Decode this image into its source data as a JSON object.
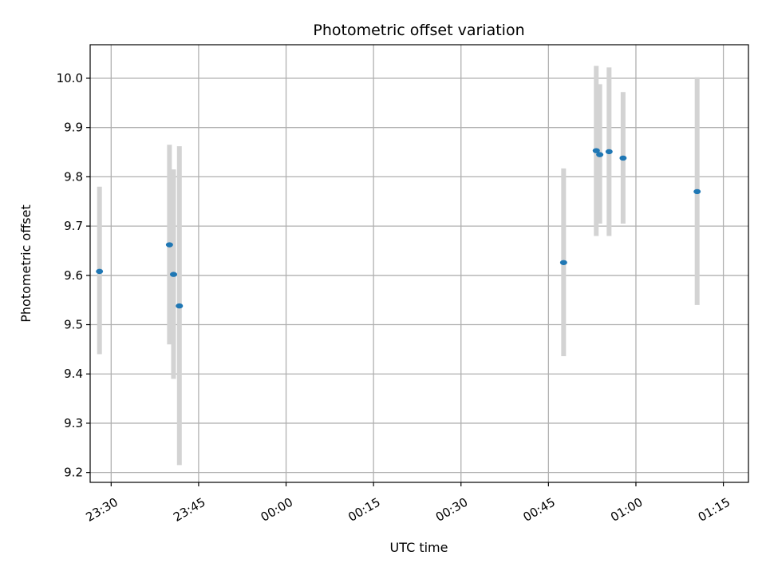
{
  "chart_data": {
    "type": "scatter",
    "title": "Photometric offset variation",
    "xlabel": "UTC time",
    "ylabel": "Photometric offset",
    "x_unit": "minutes relative to 00:00 UTC",
    "xlim": [
      -33.6,
      79.3
    ],
    "ylim": [
      9.18,
      10.068
    ],
    "xticks": [
      {
        "value": -30,
        "label": "23:30"
      },
      {
        "value": -15,
        "label": "23:45"
      },
      {
        "value": 0,
        "label": "00:00"
      },
      {
        "value": 15,
        "label": "00:15"
      },
      {
        "value": 30,
        "label": "00:30"
      },
      {
        "value": 45,
        "label": "00:45"
      },
      {
        "value": 60,
        "label": "01:00"
      },
      {
        "value": 75,
        "label": "01:15"
      }
    ],
    "yticks": [
      {
        "value": 9.2,
        "label": "9.2"
      },
      {
        "value": 9.3,
        "label": "9.3"
      },
      {
        "value": 9.4,
        "label": "9.4"
      },
      {
        "value": 9.5,
        "label": "9.5"
      },
      {
        "value": 9.6,
        "label": "9.6"
      },
      {
        "value": 9.7,
        "label": "9.7"
      },
      {
        "value": 9.8,
        "label": "9.8"
      },
      {
        "value": 9.9,
        "label": "9.9"
      },
      {
        "value": 10.0,
        "label": "10.0"
      }
    ],
    "grid": true,
    "colors": {
      "point": "#1f77b4",
      "errorbar": "#d3d3d3"
    },
    "series": [
      {
        "points": [
          {
            "x": -32.0,
            "y": 9.608,
            "low": 9.44,
            "high": 9.78
          },
          {
            "x": -20.0,
            "y": 9.662,
            "low": 9.46,
            "high": 9.865
          },
          {
            "x": -19.3,
            "y": 9.602,
            "low": 9.39,
            "high": 9.815
          },
          {
            "x": -18.3,
            "y": 9.538,
            "low": 9.215,
            "high": 9.862
          },
          {
            "x": 47.6,
            "y": 9.626,
            "low": 9.436,
            "high": 9.817
          },
          {
            "x": 53.2,
            "y": 9.853,
            "low": 9.68,
            "high": 10.025
          },
          {
            "x": 53.8,
            "y": 9.845,
            "low": 9.705,
            "high": 9.988
          },
          {
            "x": 55.4,
            "y": 9.851,
            "low": 9.68,
            "high": 10.022
          },
          {
            "x": 57.8,
            "y": 9.838,
            "low": 9.705,
            "high": 9.972
          },
          {
            "x": 70.5,
            "y": 9.77,
            "low": 9.54,
            "high": 10.002
          }
        ]
      }
    ]
  }
}
